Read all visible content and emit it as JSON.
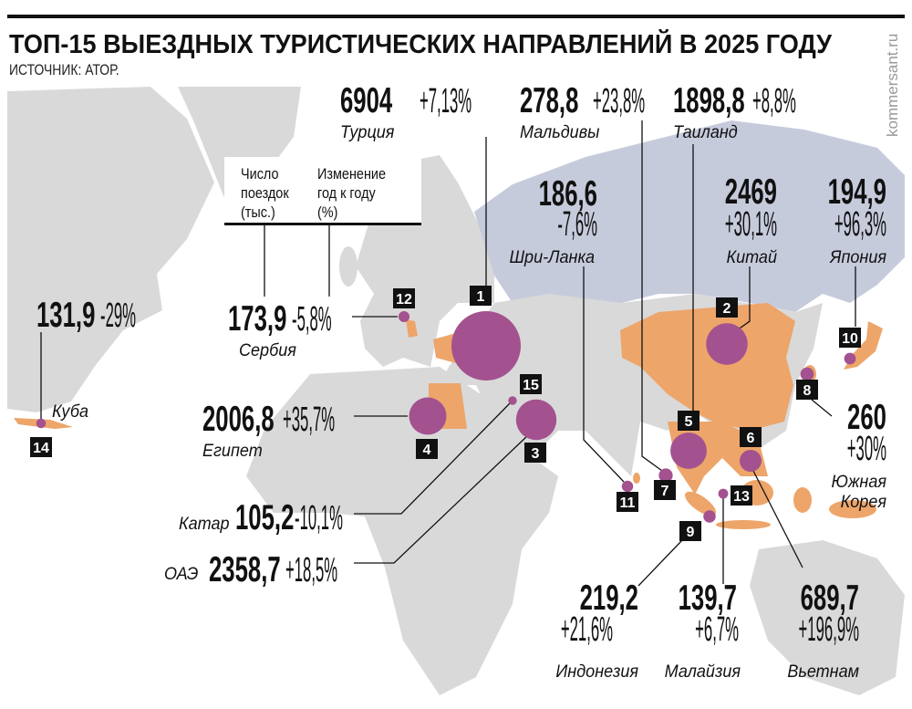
{
  "header": {
    "title": "ТОП-15 ВЫЕЗДНЫХ ТУРИСТИЧЕСКИХ НАПРАВЛЕНИЙ В 2025 ГОДУ",
    "source": "ИСТОЧНИК: АТОР.",
    "watermark": "kommersant.ru"
  },
  "legend": {
    "trips_line1": "Число",
    "trips_line2": "поездок",
    "trips_line3": "(тыс.)",
    "change_line1": "Изменение",
    "change_line2": "год к году",
    "change_line3": "(%)"
  },
  "colors": {
    "land": "#d9d9d9",
    "russia": "#c6cbdc",
    "destination_country": "#eda56a",
    "bubble": "#a3528f",
    "badge": "#111111"
  },
  "destinations": [
    {
      "rank": "1",
      "country": "Турция",
      "trips": "6904",
      "change": "+7,13%"
    },
    {
      "rank": "2",
      "country": "Китай",
      "trips": "2469",
      "change": "+30,1%"
    },
    {
      "rank": "3",
      "country": "ОАЭ",
      "trips": "2358,7",
      "change": "+18,5%"
    },
    {
      "rank": "4",
      "country": "Египет",
      "trips": "2006,8",
      "change": "+35,7%"
    },
    {
      "rank": "5",
      "country": "Таиланд",
      "trips": "1898,8",
      "change": "+8,8%"
    },
    {
      "rank": "6",
      "country": "Вьетнам",
      "trips": "689,7",
      "change": "+196,9%"
    },
    {
      "rank": "7",
      "country": "Мальдивы",
      "trips": "278,8",
      "change": "+23,8%"
    },
    {
      "rank": "8",
      "country": "Южная Корея",
      "country_line1": "Южная",
      "country_line2": "Корея",
      "trips": "260",
      "change": "+30%"
    },
    {
      "rank": "9",
      "country": "Индонезия",
      "trips": "219,2",
      "change": "+21,6%"
    },
    {
      "rank": "10",
      "country": "Япония",
      "trips": "194,9",
      "change": "+96,3%"
    },
    {
      "rank": "11",
      "country": "Шри-Ланка",
      "trips": "186,6",
      "change": "-7,6%"
    },
    {
      "rank": "12",
      "country": "Сербия",
      "trips": "173,9",
      "change": "-5,8%"
    },
    {
      "rank": "13",
      "country": "Малайзия",
      "trips": "139,7",
      "change": "+6,7%"
    },
    {
      "rank": "14",
      "country": "Куба",
      "trips": "131,9",
      "change": "-29%"
    },
    {
      "rank": "15",
      "country": "Катар",
      "trips": "105,2",
      "change": "-10,1%"
    }
  ]
}
